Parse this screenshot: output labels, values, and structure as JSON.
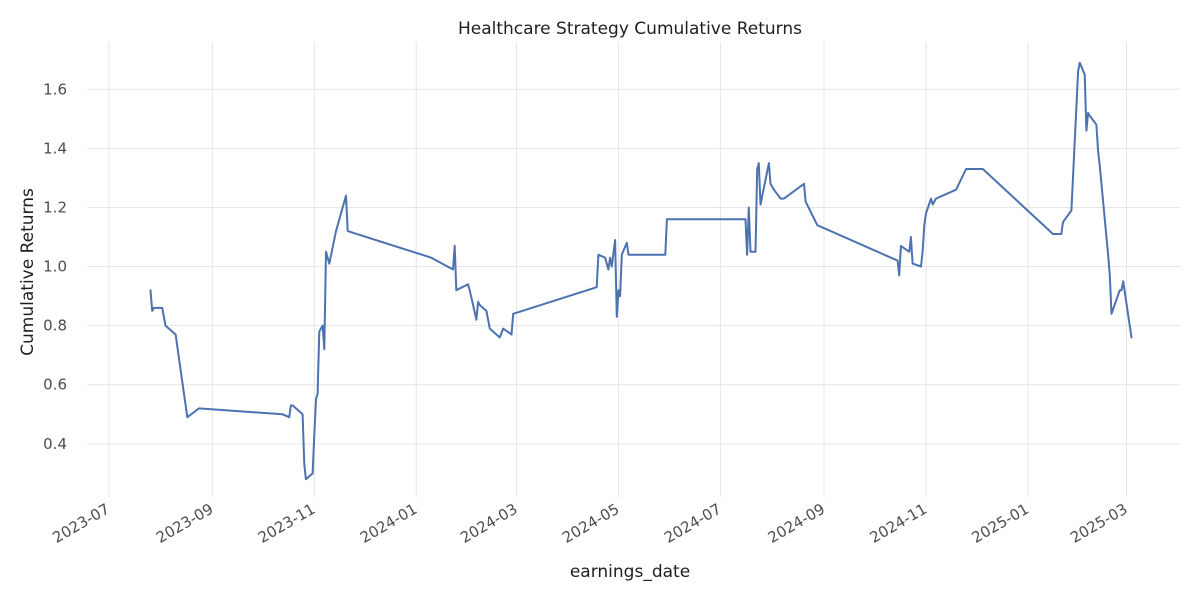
{
  "chart_data": {
    "type": "line",
    "title": "Healthcare Strategy Cumulative Returns",
    "xlabel": "earnings_date",
    "ylabel": "Cumulative Returns",
    "grid": true,
    "legend": "none",
    "x_type": "date",
    "xlim": [
      "2023-06-18",
      "2025-04-02"
    ],
    "ylim": [
      0.22,
      1.76
    ],
    "x_ticks": [
      "2023-07",
      "2023-09",
      "2023-11",
      "2024-01",
      "2024-03",
      "2024-05",
      "2024-07",
      "2024-09",
      "2024-11",
      "2025-01",
      "2025-03"
    ],
    "y_ticks": [
      0.4,
      0.6,
      0.8,
      1.0,
      1.2,
      1.4,
      1.6
    ],
    "y_tick_labels": [
      "0.4",
      "0.6",
      "0.8",
      "1.0",
      "1.2",
      "1.4",
      "1.6"
    ],
    "series": [
      {
        "color": "#4c72b0",
        "x": [
          "2023-07-26",
          "2023-07-27",
          "2023-07-28",
          "2023-08-02",
          "2023-08-04",
          "2023-08-08",
          "2023-08-10",
          "2023-08-17",
          "2023-08-24",
          "2023-10-13",
          "2023-10-17",
          "2023-10-18",
          "2023-10-19",
          "2023-10-25",
          "2023-10-26",
          "2023-10-27",
          "2023-10-31",
          "2023-11-01",
          "2023-11-02",
          "2023-11-03",
          "2023-11-04",
          "2023-11-06",
          "2023-11-07",
          "2023-11-08",
          "2023-11-10",
          "2023-11-14",
          "2023-11-20",
          "2023-11-21",
          "2024-01-10",
          "2024-01-23",
          "2024-01-24",
          "2024-01-25",
          "2024-02-01",
          "2024-02-02",
          "2024-02-06",
          "2024-02-07",
          "2024-02-08",
          "2024-02-12",
          "2024-02-14",
          "2024-02-20",
          "2024-02-22",
          "2024-02-27",
          "2024-02-28",
          "2024-04-18",
          "2024-04-19",
          "2024-04-23",
          "2024-04-25",
          "2024-04-26",
          "2024-04-27",
          "2024-04-29",
          "2024-04-30",
          "2024-05-01",
          "2024-05-02",
          "2024-05-03",
          "2024-05-06",
          "2024-05-07",
          "2024-05-08",
          "2024-05-29",
          "2024-05-30",
          "2024-07-16",
          "2024-07-17",
          "2024-07-18",
          "2024-07-19",
          "2024-07-22",
          "2024-07-23",
          "2024-07-24",
          "2024-07-25",
          "2024-07-30",
          "2024-07-31",
          "2024-08-01",
          "2024-08-02",
          "2024-08-06",
          "2024-08-08",
          "2024-08-20",
          "2024-08-21",
          "2024-08-28",
          "2024-10-15",
          "2024-10-16",
          "2024-10-17",
          "2024-10-22",
          "2024-10-23",
          "2024-10-24",
          "2024-10-29",
          "2024-10-30",
          "2024-10-31",
          "2024-11-01",
          "2024-11-04",
          "2024-11-05",
          "2024-11-06",
          "2024-11-07",
          "2024-11-19",
          "2024-11-25",
          "2024-12-05",
          "2025-01-16",
          "2025-01-21",
          "2025-01-22",
          "2025-01-27",
          "2025-01-31",
          "2025-02-01",
          "2025-02-04",
          "2025-02-05",
          "2025-02-06",
          "2025-02-07",
          "2025-02-11",
          "2025-02-12",
          "2025-02-13",
          "2025-02-18",
          "2025-02-19",
          "2025-02-20",
          "2025-02-25",
          "2025-02-26",
          "2025-02-27",
          "2025-03-04"
        ],
        "y": [
          0.92,
          0.85,
          0.86,
          0.86,
          0.8,
          0.78,
          0.77,
          0.49,
          0.52,
          0.5,
          0.49,
          0.53,
          0.53,
          0.5,
          0.33,
          0.28,
          0.3,
          0.43,
          0.55,
          0.57,
          0.78,
          0.8,
          0.72,
          1.05,
          1.01,
          1.12,
          1.24,
          1.12,
          1.03,
          0.99,
          1.07,
          0.92,
          0.94,
          0.92,
          0.82,
          0.88,
          0.87,
          0.85,
          0.79,
          0.76,
          0.79,
          0.77,
          0.84,
          0.93,
          1.04,
          1.03,
          0.99,
          1.03,
          1.0,
          1.09,
          0.83,
          0.92,
          0.9,
          1.04,
          1.08,
          1.04,
          1.04,
          1.04,
          1.16,
          1.16,
          1.04,
          1.2,
          1.05,
          1.05,
          1.33,
          1.35,
          1.21,
          1.35,
          1.28,
          1.27,
          1.26,
          1.23,
          1.23,
          1.28,
          1.22,
          1.14,
          1.02,
          0.97,
          1.07,
          1.05,
          1.1,
          1.01,
          1.0,
          1.05,
          1.14,
          1.18,
          1.23,
          1.21,
          1.22,
          1.23,
          1.26,
          1.33,
          1.33,
          1.11,
          1.11,
          1.15,
          1.19,
          1.66,
          1.69,
          1.65,
          1.46,
          1.52,
          1.51,
          1.48,
          1.39,
          1.34,
          1.04,
          0.97,
          0.84,
          0.92,
          0.92,
          0.95,
          0.76
        ]
      }
    ]
  }
}
